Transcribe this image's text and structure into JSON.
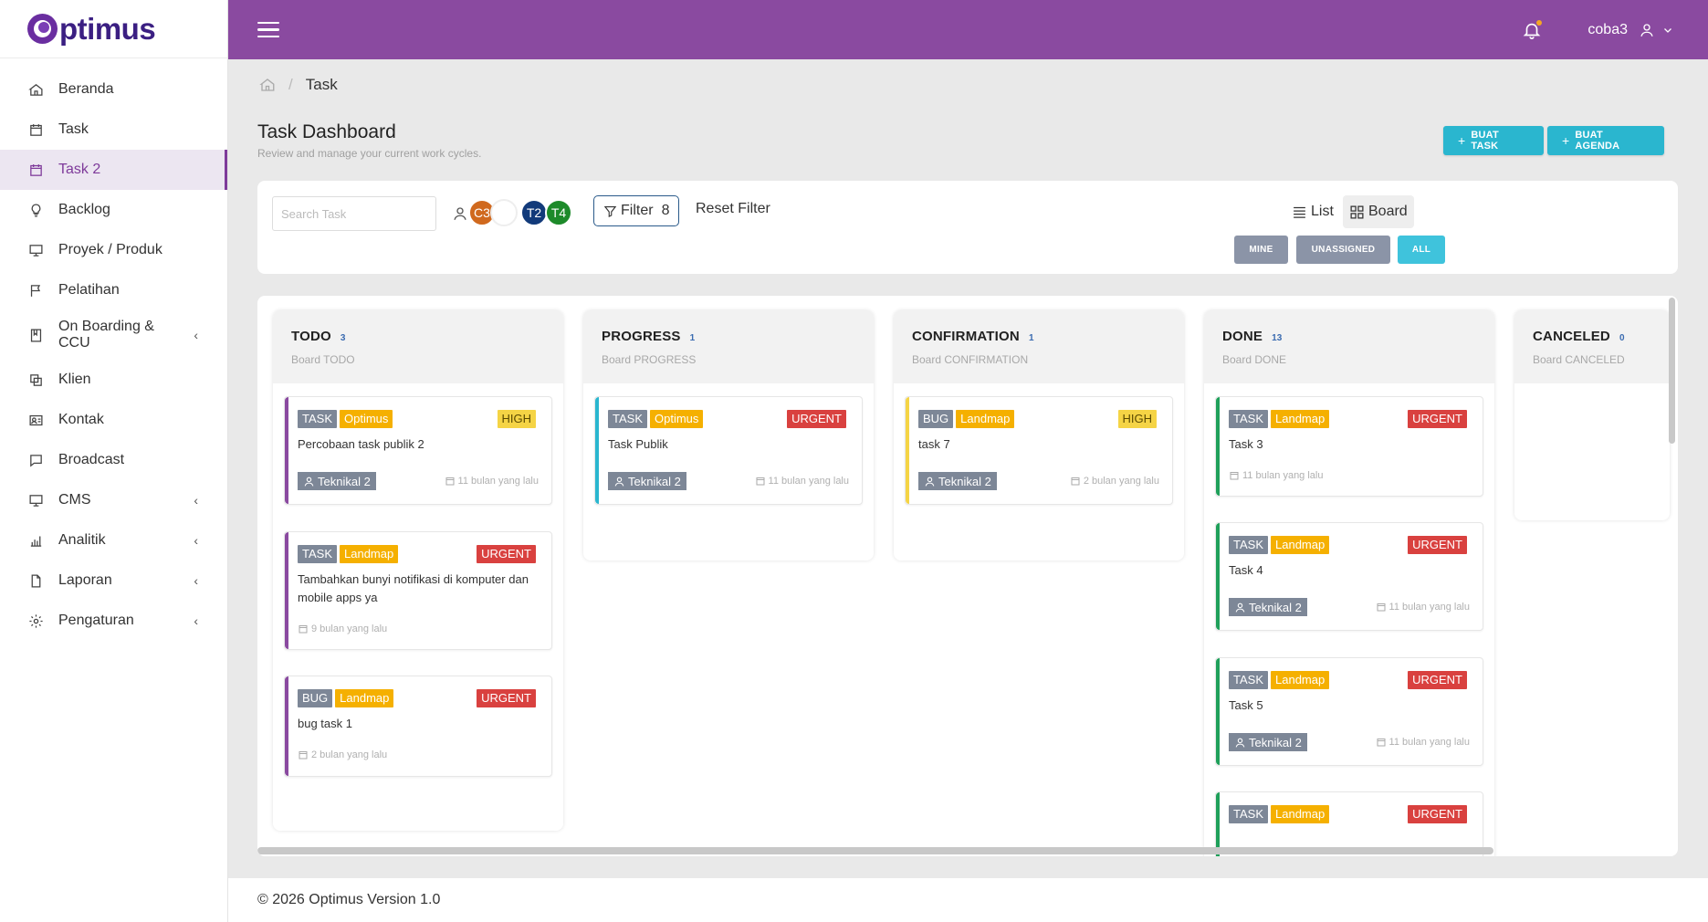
{
  "brand": {
    "name": "ptimus"
  },
  "sidebar": {
    "items": [
      {
        "label": "Beranda",
        "icon": "home-icon"
      },
      {
        "label": "Task",
        "icon": "calendar-icon"
      },
      {
        "label": "Task 2",
        "icon": "calendar-icon",
        "active": true
      },
      {
        "label": "Backlog",
        "icon": "lightbulb-icon"
      },
      {
        "label": "Proyek / Produk",
        "icon": "monitor-icon"
      },
      {
        "label": "Pelatihan",
        "icon": "flag-icon"
      },
      {
        "label": "On Boarding & CCU",
        "icon": "book-icon",
        "expandable": true
      },
      {
        "label": "Klien",
        "icon": "copy-icon"
      },
      {
        "label": "Kontak",
        "icon": "contact-card-icon"
      },
      {
        "label": "Broadcast",
        "icon": "message-icon"
      },
      {
        "label": "CMS",
        "icon": "monitor-icon",
        "expandable": true
      },
      {
        "label": "Analitik",
        "icon": "bar-chart-icon",
        "expandable": true
      },
      {
        "label": "Laporan",
        "icon": "file-icon",
        "expandable": true
      },
      {
        "label": "Pengaturan",
        "icon": "gear-icon",
        "expandable": true
      }
    ]
  },
  "topbar": {
    "username": "coba3",
    "bg_color": "#8a4aa0"
  },
  "breadcrumb": {
    "current": "Task"
  },
  "header": {
    "title": "Task Dashboard",
    "subtitle": "Review and manage your current work cycles.",
    "create_task": "BUAT TASK",
    "create_agenda": "BUAT AGENDA"
  },
  "filters": {
    "search_placeholder": "Search Task",
    "avatars": [
      {
        "initials": "C3",
        "color": "#d0691e"
      },
      {
        "initials": "",
        "color": "#ffffff"
      },
      {
        "initials": "T2",
        "color": "#123a7a"
      },
      {
        "initials": "T4",
        "color": "#1d8a2a"
      }
    ],
    "filter_label": "Filter",
    "filter_count": "8",
    "reset_label": "Reset Filter",
    "view_list": "List",
    "view_board": "Board",
    "scope_mine": "MINE",
    "scope_unassigned": "UNASSIGNED",
    "scope_all": "ALL"
  },
  "board": {
    "columns": [
      {
        "title": "TODO",
        "count": "3",
        "subtitle": "Board TODO",
        "cards": [
          {
            "type": "TASK",
            "project": "Optimus",
            "priority": "HIGH",
            "title": "Percobaan task publik 2",
            "assignee": "Teknikal 2",
            "date": "11 bulan yang lalu"
          },
          {
            "type": "TASK",
            "project": "Landmap",
            "priority": "URGENT",
            "title": "Tambahkan bunyi notifikasi di komputer dan mobile apps ya",
            "date": "9 bulan yang lalu"
          },
          {
            "type": "BUG",
            "project": "Landmap",
            "priority": "URGENT",
            "title": "bug task 1",
            "date": "2 bulan yang lalu"
          }
        ]
      },
      {
        "title": "PROGRESS",
        "count": "1",
        "subtitle": "Board PROGRESS",
        "cards": [
          {
            "type": "TASK",
            "project": "Optimus",
            "priority": "URGENT",
            "title": "Task Publik",
            "assignee": "Teknikal 2",
            "date": "11 bulan yang lalu"
          }
        ]
      },
      {
        "title": "CONFIRMATION",
        "count": "1",
        "subtitle": "Board CONFIRMATION",
        "cards": [
          {
            "type": "BUG",
            "project": "Landmap",
            "priority": "HIGH",
            "title": "task 7",
            "assignee": "Teknikal 2",
            "date": "2 bulan yang lalu"
          }
        ]
      },
      {
        "title": "DONE",
        "count": "13",
        "subtitle": "Board DONE",
        "cards": [
          {
            "type": "TASK",
            "project": "Landmap",
            "priority": "URGENT",
            "title": "Task 3",
            "date": "11 bulan yang lalu"
          },
          {
            "type": "TASK",
            "project": "Landmap",
            "priority": "URGENT",
            "title": "Task 4",
            "assignee": "Teknikal 2",
            "date": "11 bulan yang lalu"
          },
          {
            "type": "TASK",
            "project": "Landmap",
            "priority": "URGENT",
            "title": "Task 5",
            "assignee": "Teknikal 2",
            "date": "11 bulan yang lalu"
          },
          {
            "type": "TASK",
            "project": "Landmap",
            "priority": "URGENT"
          }
        ]
      },
      {
        "title": "CANCELED",
        "count": "0",
        "subtitle": "Board CANCELED",
        "cards": []
      }
    ]
  },
  "footer": {
    "text": "© 2026 Optimus Version 1.0"
  },
  "colors": {
    "accent": "#2ab6cf",
    "todo": "#8a4aa0",
    "progress": "#2ab6cf",
    "confirmation": "#f5d445",
    "done": "#1fa05a"
  }
}
